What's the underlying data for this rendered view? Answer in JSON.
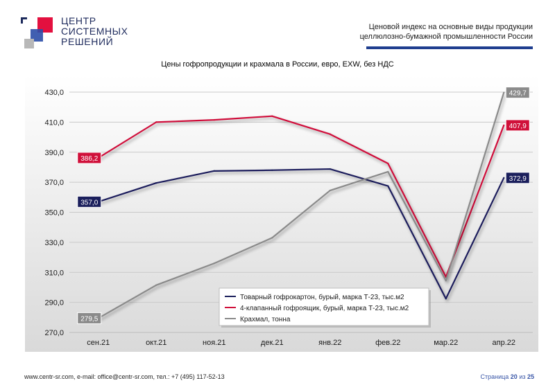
{
  "header": {
    "logo_lines": [
      "ЦЕНТР",
      "СИСТЕМНЫХ",
      "РЕШЕНИЙ"
    ],
    "subtitle_lines": [
      "Ценовой индекс на основные виды продукции",
      "целлюлозно-бумажной промышленности России"
    ],
    "accent_color": "#1f3e8f"
  },
  "chart_data": {
    "type": "line",
    "title": "Цены гофропродукции и крахмала в России, евро, EXW, без НДС",
    "categories": [
      "сен.21",
      "окт.21",
      "ноя.21",
      "дек.21",
      "янв.22",
      "фев.22",
      "мар.22",
      "апр.22"
    ],
    "y_ticks": [
      "270,0",
      "290,0",
      "310,0",
      "330,0",
      "350,0",
      "370,0",
      "390,0",
      "410,0",
      "430,0"
    ],
    "ylim": [
      270,
      430
    ],
    "grid": true,
    "legend_position": "bottom-right",
    "series": [
      {
        "name": "Товарный гофрокартон, бурый, марка Т-23, тыс.м2",
        "color": "#1b1f5c",
        "values": [
          357.0,
          369.5,
          377.5,
          378.0,
          378.8,
          367.5,
          292.5,
          372.9
        ],
        "labels": {
          "first": "357,0",
          "last": "372,9"
        }
      },
      {
        "name": "4-клапанный гофроящик, бурый, марка Т-23, тыс.м2",
        "color": "#d0103a",
        "values": [
          386.2,
          410.0,
          411.5,
          414.0,
          402.0,
          382.5,
          307.0,
          407.9
        ],
        "labels": {
          "first": "386,2",
          "last": "407,9"
        }
      },
      {
        "name": "Крахмал, тонна",
        "color": "#8a8a8a",
        "values": [
          279.5,
          301.5,
          316.0,
          333.0,
          364.5,
          377.0,
          304.5,
          429.7
        ],
        "labels": {
          "first": "279,5",
          "last": "429,7"
        }
      }
    ]
  },
  "footer": {
    "contacts": "www.centr-sr.com, e-mail: office@centr-sr.com, тел.: +7 (495) 117-52-13",
    "page_prefix": "Страница",
    "page_current": "20",
    "page_of": "из",
    "page_total": "25"
  }
}
